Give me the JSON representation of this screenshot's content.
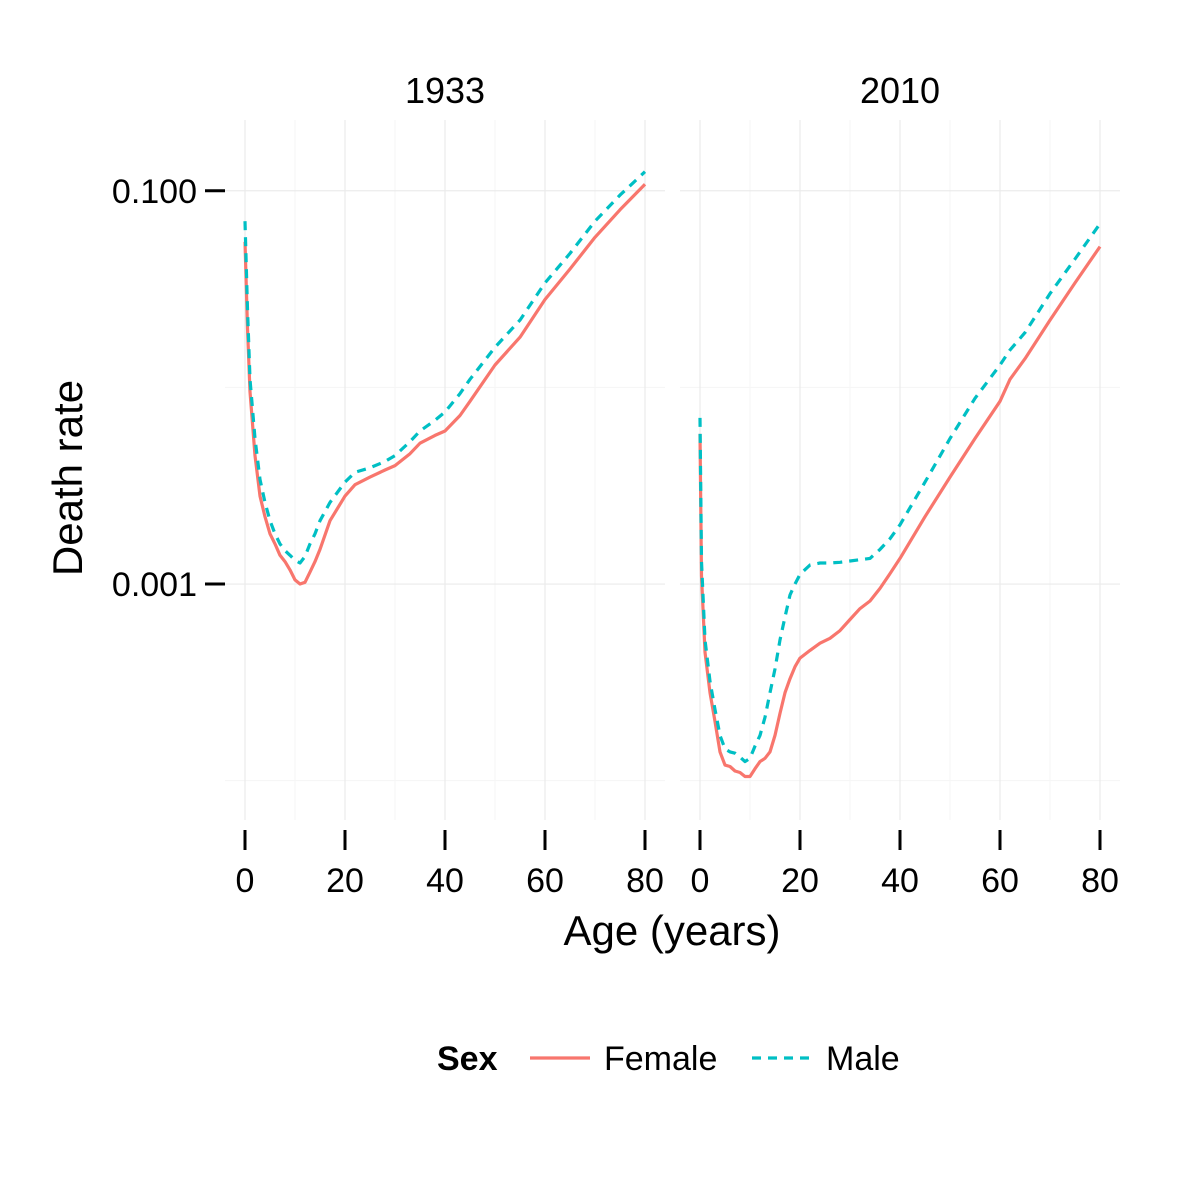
{
  "chart_data": {
    "type": "line",
    "xlabel": "Age (years)",
    "ylabel": "Death rate",
    "y_scale": "log10",
    "ylim": [
      6.31e-05,
      0.229
    ],
    "xlim": [
      -4,
      84
    ],
    "y_ticks": [
      {
        "value": 0.1,
        "label": "0.100"
      },
      {
        "value": 0.001,
        "label": "0.001"
      }
    ],
    "x_ticks": [
      {
        "value": 0,
        "label": "0"
      },
      {
        "value": 20,
        "label": "20"
      },
      {
        "value": 40,
        "label": "40"
      },
      {
        "value": 60,
        "label": "60"
      },
      {
        "value": 80,
        "label": "80"
      }
    ],
    "grid": true,
    "legend": {
      "title": "Sex",
      "position": "bottom",
      "entries": [
        {
          "label": "Female",
          "color": "#F8766D",
          "linetype": "solid"
        },
        {
          "label": "Male",
          "color": "#00BFC4",
          "linetype": "dashed"
        }
      ]
    },
    "panels": [
      {
        "title": "1933",
        "series": [
          {
            "name": "Female",
            "x": [
              0,
              0.5,
              1,
              2,
              3,
              4,
              5,
              6,
              7,
              8,
              9,
              10,
              11,
              12,
              13,
              14,
              15,
              17,
              20,
              22,
              25,
              28,
              30,
              33,
              35,
              38,
              40,
              43,
              45,
              50,
              55,
              60,
              65,
              70,
              75,
              80
            ],
            "y": [
              0.055,
              0.02,
              0.0095,
              0.0045,
              0.0028,
              0.0022,
              0.0018,
              0.0016,
              0.0014,
              0.0013,
              0.00118,
              0.00105,
              0.001,
              0.00102,
              0.00115,
              0.0013,
              0.0015,
              0.0021,
              0.0028,
              0.0032,
              0.0035,
              0.0038,
              0.004,
              0.0046,
              0.0052,
              0.0057,
              0.006,
              0.0072,
              0.0085,
              0.013,
              0.018,
              0.028,
              0.04,
              0.058,
              0.08,
              0.108
            ]
          },
          {
            "name": "Male",
            "x": [
              0,
              0.5,
              1,
              2,
              3,
              4,
              5,
              6,
              7,
              8,
              9,
              10,
              11,
              12,
              13,
              14,
              15,
              17,
              20,
              22,
              25,
              28,
              30,
              33,
              35,
              38,
              40,
              43,
              45,
              50,
              55,
              60,
              65,
              70,
              75,
              80
            ],
            "y": [
              0.07,
              0.025,
              0.011,
              0.0055,
              0.0034,
              0.0026,
              0.0021,
              0.0018,
              0.0016,
              0.00148,
              0.0014,
              0.00132,
              0.00128,
              0.00138,
              0.0016,
              0.0018,
              0.0021,
              0.0026,
              0.0033,
              0.0037,
              0.0039,
              0.0042,
              0.0045,
              0.0053,
              0.006,
              0.0068,
              0.0075,
              0.0093,
              0.011,
              0.016,
              0.022,
              0.034,
              0.048,
              0.07,
              0.095,
              0.125
            ]
          }
        ]
      },
      {
        "title": "2010",
        "series": [
          {
            "name": "Female",
            "x": [
              0,
              0.3,
              1,
              2,
              3,
              4,
              5,
              6,
              7,
              8,
              9,
              10,
              11,
              12,
              13,
              14,
              15,
              16,
              17,
              18,
              19,
              20,
              22,
              24,
              26,
              28,
              30,
              32,
              34,
              36,
              38,
              40,
              45,
              50,
              55,
              60,
              62,
              65,
              70,
              75,
              80
            ],
            "y": [
              0.0058,
              0.0011,
              0.00045,
              0.00028,
              0.0002,
              0.00014,
              0.00012,
              0.000118,
              0.000112,
              0.00011,
              0.000105,
              0.000105,
              0.000115,
              0.000125,
              0.00013,
              0.00014,
              0.00017,
              0.00022,
              0.00028,
              0.00033,
              0.00038,
              0.00042,
              0.00046,
              0.0005,
              0.00053,
              0.00058,
              0.00066,
              0.00075,
              0.00082,
              0.00095,
              0.00113,
              0.00135,
              0.0022,
              0.0035,
              0.0055,
              0.0085,
              0.011,
              0.014,
              0.022,
              0.034,
              0.052
            ]
          },
          {
            "name": "Male",
            "x": [
              0,
              0.3,
              1,
              2,
              3,
              4,
              5,
              6,
              7,
              8,
              9,
              10,
              11,
              12,
              13,
              14,
              15,
              16,
              17,
              18,
              19,
              20,
              22,
              24,
              26,
              28,
              30,
              32,
              34,
              36,
              38,
              40,
              45,
              50,
              55,
              60,
              62,
              65,
              70,
              75,
              80
            ],
            "y": [
              0.007,
              0.0013,
              0.00052,
              0.00032,
              0.00023,
              0.00017,
              0.000145,
              0.00014,
              0.000138,
              0.000132,
              0.000125,
              0.00013,
              0.00015,
              0.00017,
              0.00021,
              0.00028,
              0.00037,
              0.00052,
              0.00068,
              0.00088,
              0.001,
              0.00112,
              0.00125,
              0.00128,
              0.00128,
              0.00129,
              0.00131,
              0.00133,
              0.00135,
              0.0015,
              0.0017,
              0.002,
              0.0033,
              0.0055,
              0.0088,
              0.013,
              0.0155,
              0.019,
              0.03,
              0.045,
              0.068
            ]
          }
        ]
      }
    ]
  }
}
